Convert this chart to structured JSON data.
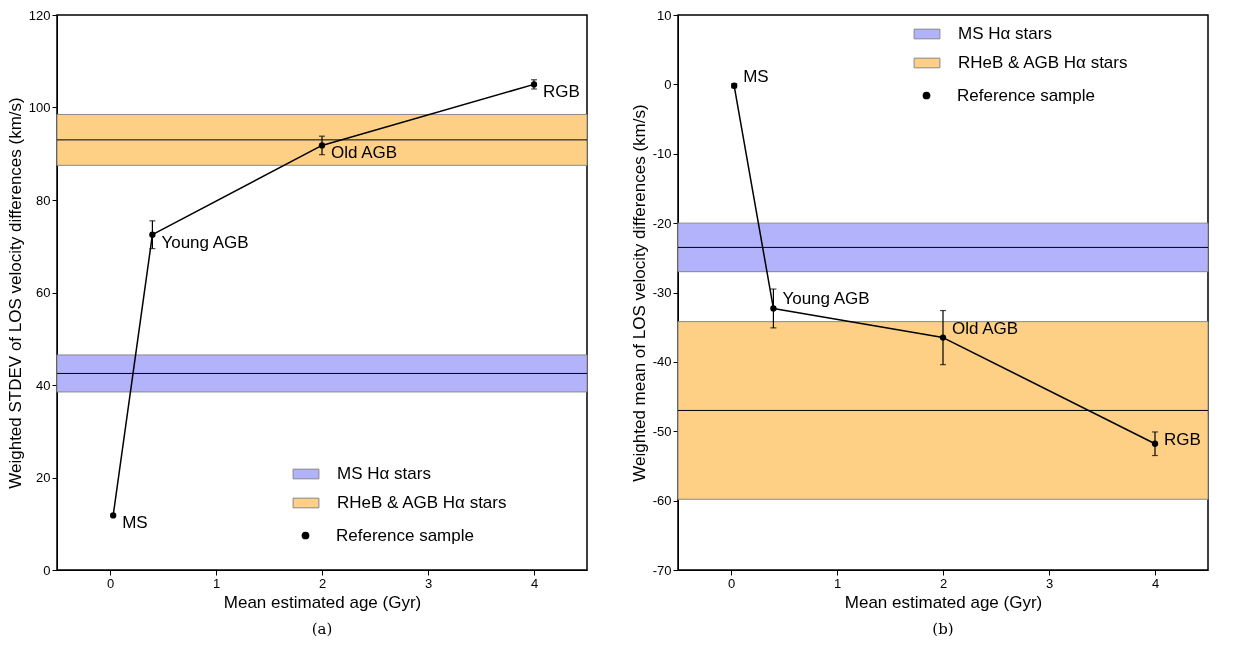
{
  "chart_data": [
    {
      "type": "line",
      "xlabel": "Mean estimated age (Gyr)",
      "ylabel": "Weighted STDEV of LOS velocity differences (km/s)",
      "x": [
        0.03,
        0.4,
        2,
        4
      ],
      "series": [
        {
          "name": "Reference sample",
          "color": "#000000",
          "values": [
            11.8,
            72.5,
            91.8,
            105
          ],
          "errors": [
            null,
            3,
            2,
            1
          ]
        }
      ],
      "xlim": [
        -0.5,
        4.5
      ],
      "xticks": [
        0,
        1,
        2,
        3,
        4
      ],
      "ylim": [
        0,
        120
      ],
      "yticks": [
        0,
        20,
        40,
        60,
        80,
        100,
        120
      ],
      "bands": [
        {
          "axis": "y",
          "from": 38.5,
          "to": 46.5,
          "label": "MS Hα stars",
          "color": "#b3b3fb"
        },
        {
          "axis": "y",
          "from": 87.5,
          "to": 98.5,
          "label": "RHeB & AGB Hα stars",
          "color": "#fdd085"
        }
      ],
      "ref_lines": [
        {
          "axis": "y",
          "value": 42.5,
          "color": "#000000"
        },
        {
          "axis": "y",
          "value": 93,
          "color": "#000000"
        }
      ],
      "annotations": [
        {
          "text": "MS",
          "x": 0.03,
          "y": 11.8
        },
        {
          "text": "Young AGB",
          "x": 0.4,
          "y": 72.5
        },
        {
          "text": "Old AGB",
          "x": 2,
          "y": 91.8
        },
        {
          "text": "RGB",
          "x": 4,
          "y": 105
        },
        "(a)"
      ],
      "legend": "bottom right",
      "marker": "circle",
      "grid": false
    },
    {
      "type": "line",
      "xlabel": "Mean estimated age (Gyr)",
      "ylabel": "Weighted mean of LOS velocity differences (km/s)",
      "x": [
        0.03,
        0.4,
        2,
        4
      ],
      "series": [
        {
          "name": "Reference sample",
          "color": "#000000",
          "values": [
            -0.2,
            -32.3,
            -36.5,
            -51.8
          ],
          "errors": [
            0.3,
            2.8,
            3.9,
            1.7
          ]
        }
      ],
      "xlim": [
        -0.5,
        4.5
      ],
      "xticks": [
        0,
        1,
        2,
        3,
        4
      ],
      "ylim": [
        -70,
        10
      ],
      "yticks": [
        -70,
        -60,
        -50,
        -40,
        -30,
        -20,
        -10,
        0,
        10
      ],
      "bands": [
        {
          "axis": "y",
          "from": -27,
          "to": -20,
          "label": "MS Hα stars",
          "color": "#b3b3fb"
        },
        {
          "axis": "y",
          "from": -59.8,
          "to": -34.2,
          "label": "RHeB & AGB Hα stars",
          "color": "#fdd085"
        }
      ],
      "ref_lines": [
        {
          "axis": "y",
          "value": -23.5,
          "color": "#000000"
        },
        {
          "axis": "y",
          "value": -47,
          "color": "#000000"
        }
      ],
      "annotations": [
        {
          "text": "MS",
          "x": 0.03,
          "y": -0.2
        },
        {
          "text": "Young AGB",
          "x": 0.4,
          "y": -32.3
        },
        {
          "text": "Old AGB",
          "x": 2,
          "y": -36.5
        },
        {
          "text": "RGB",
          "x": 4,
          "y": -51.8
        },
        "(b)"
      ],
      "legend": "top right",
      "marker": "circle",
      "grid": false
    }
  ]
}
